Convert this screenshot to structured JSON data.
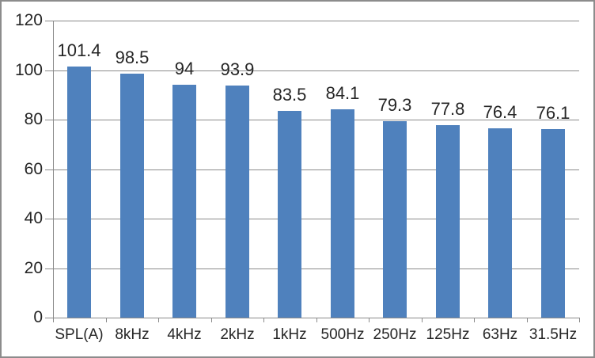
{
  "chart_data": {
    "type": "bar",
    "title": "",
    "xlabel": "",
    "ylabel": "",
    "categories": [
      "SPL(A)",
      "8kHz",
      "4kHz",
      "2kHz",
      "1kHz",
      "500Hz",
      "250Hz",
      "125Hz",
      "63Hz",
      "31.5Hz"
    ],
    "values": [
      101.4,
      98.5,
      94,
      93.9,
      83.5,
      84.1,
      79.3,
      77.8,
      76.4,
      76.1
    ],
    "data_labels": [
      101.4,
      98.5,
      94,
      93.9,
      83.5,
      84.1,
      79.3,
      77.8,
      76.4,
      76.1
    ],
    "ylim": [
      0,
      120
    ],
    "yticks": [
      0,
      20,
      40,
      60,
      80,
      100,
      120
    ],
    "grid": true,
    "legend": "none",
    "colors": {
      "bar_fill": "#4F81BD",
      "gridline": "#8A8A8A",
      "axis_line": "#8A8A8A",
      "tick_mark": "#8A8A8A",
      "text": "#262626",
      "frame_border": "#8C8C8C",
      "background": "#FFFFFF"
    }
  }
}
